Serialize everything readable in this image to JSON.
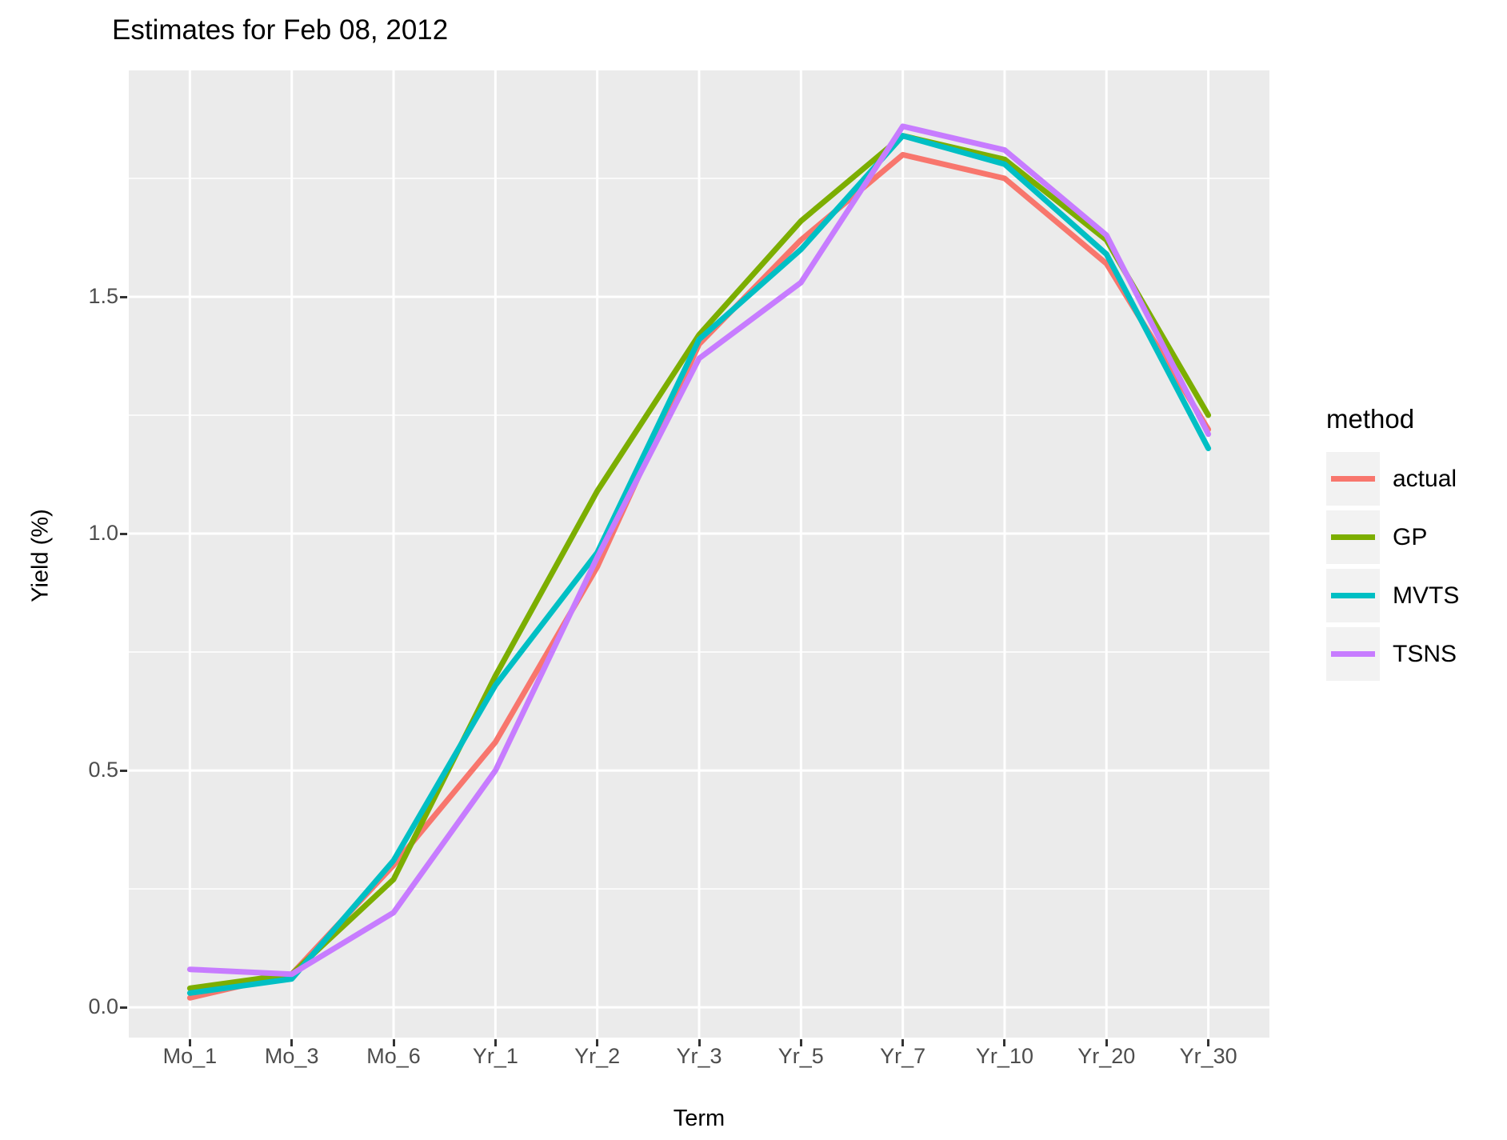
{
  "title": "Estimates for Feb 08, 2012",
  "chart_data": {
    "type": "line",
    "title": "Estimates for Feb 08, 2012",
    "xlabel": "Term",
    "ylabel": "Yield (%)",
    "categories": [
      "Mo_1",
      "Mo_3",
      "Mo_6",
      "Yr_1",
      "Yr_2",
      "Yr_3",
      "Yr_5",
      "Yr_7",
      "Yr_10",
      "Yr_20",
      "Yr_30"
    ],
    "series": [
      {
        "name": "actual",
        "color": "#F8766D",
        "values": [
          0.02,
          0.07,
          0.3,
          0.56,
          0.93,
          1.4,
          1.62,
          1.8,
          1.75,
          1.57,
          1.22
        ]
      },
      {
        "name": "GP",
        "color": "#7CAE00",
        "values": [
          0.04,
          0.07,
          0.27,
          0.7,
          1.09,
          1.42,
          1.66,
          1.84,
          1.79,
          1.62,
          1.25
        ]
      },
      {
        "name": "MVTS",
        "color": "#00BFC4",
        "values": [
          0.03,
          0.06,
          0.31,
          0.68,
          0.96,
          1.41,
          1.6,
          1.84,
          1.78,
          1.59,
          1.18
        ]
      },
      {
        "name": "TSNS",
        "color": "#C77CFF",
        "values": [
          0.08,
          0.07,
          0.2,
          0.5,
          0.95,
          1.37,
          1.53,
          1.86,
          1.81,
          1.63,
          1.21
        ]
      }
    ],
    "yticks": [
      {
        "value": 0.0,
        "label": "0.0"
      },
      {
        "value": 0.5,
        "label": "0.5"
      },
      {
        "value": 1.0,
        "label": "1.0"
      },
      {
        "value": 1.5,
        "label": "1.5"
      }
    ],
    "minor_yticks": [
      0.25,
      0.75,
      1.25,
      1.75
    ],
    "ylim": [
      -0.064,
      1.978
    ],
    "grid": "on",
    "legend": {
      "title": "method",
      "position": "right"
    },
    "style": {
      "panel_bg": "#EBEBEB",
      "grid_color": "#FFFFFF",
      "tick_color": "#333333",
      "tick_label_color": "#4D4D4D",
      "line_width": 7
    }
  }
}
